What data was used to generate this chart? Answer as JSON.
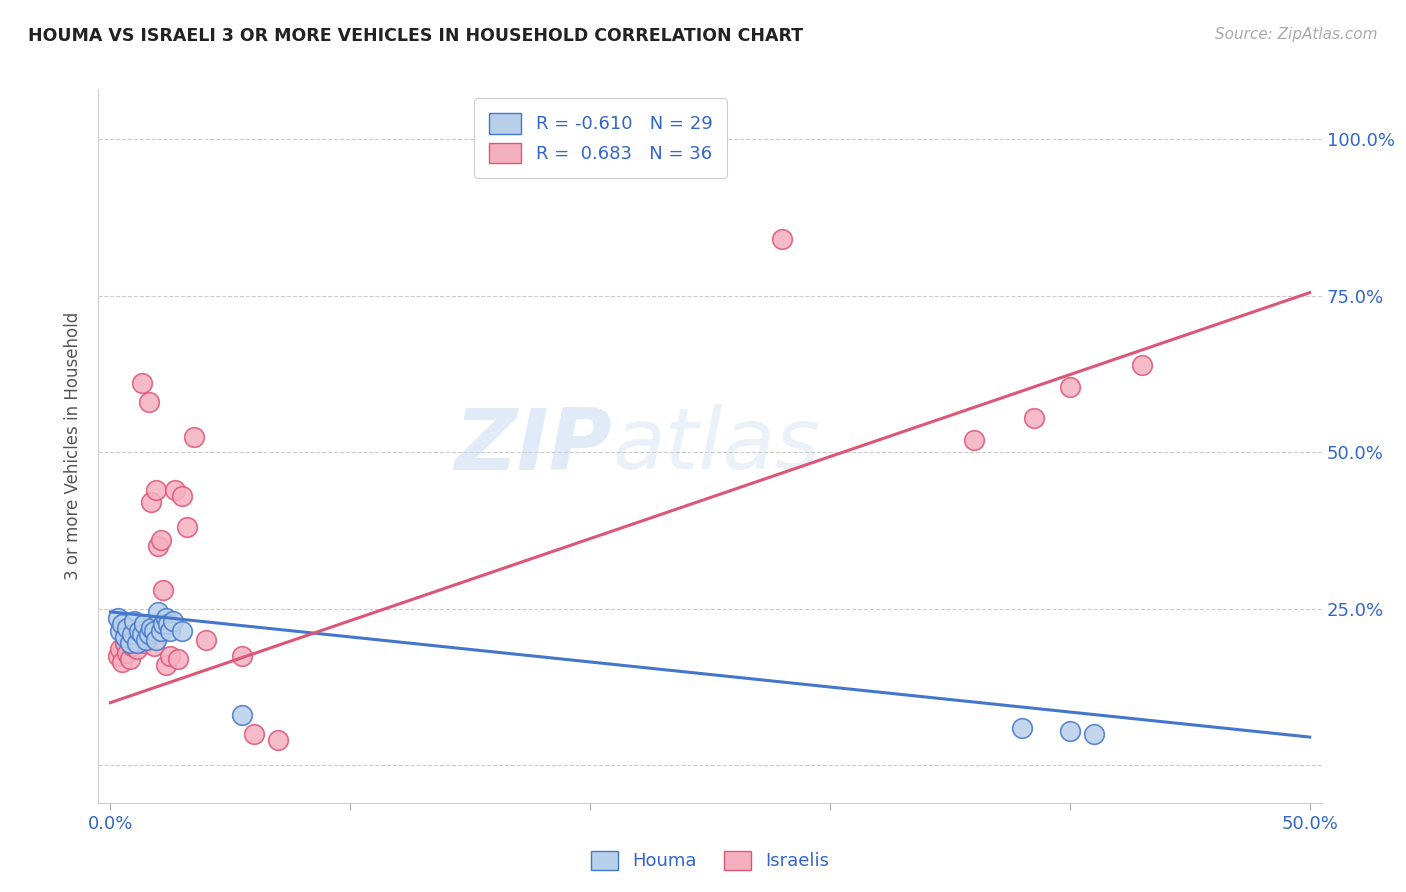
{
  "title": "HOUMA VS ISRAELI 3 OR MORE VEHICLES IN HOUSEHOLD CORRELATION CHART",
  "source": "Source: ZipAtlas.com",
  "ylabel": "3 or more Vehicles in Household",
  "xlabel_houma": "Houma",
  "xlabel_israeli": "Israelis",
  "watermark_zip": "ZIP",
  "watermark_atlas": "atlas",
  "xlim": [
    -0.005,
    0.505
  ],
  "ylim": [
    -0.06,
    1.08
  ],
  "houma_R": "-0.610",
  "houma_N": "29",
  "israeli_R": "0.683",
  "israeli_N": "36",
  "houma_color": "#b8d0ea",
  "israeli_color": "#f5b0c0",
  "houma_line_color": "#4477cc",
  "israeli_line_color": "#dd5577",
  "legend_text_color": "#3366cc",
  "axis_text_color": "#3366cc",
  "title_color": "#222222",
  "source_color": "#aaaaaa",
  "grid_color": "#cccccc",
  "background_color": "#ffffff",
  "houma_x": [
    0.003,
    0.004,
    0.005,
    0.006,
    0.007,
    0.008,
    0.009,
    0.01,
    0.011,
    0.012,
    0.013,
    0.014,
    0.015,
    0.016,
    0.017,
    0.018,
    0.019,
    0.02,
    0.021,
    0.022,
    0.023,
    0.024,
    0.025,
    0.026,
    0.03,
    0.055,
    0.38,
    0.4,
    0.41
  ],
  "houma_y": [
    0.235,
    0.215,
    0.225,
    0.205,
    0.22,
    0.195,
    0.21,
    0.23,
    0.195,
    0.215,
    0.21,
    0.225,
    0.2,
    0.21,
    0.22,
    0.215,
    0.2,
    0.245,
    0.215,
    0.225,
    0.235,
    0.225,
    0.215,
    0.23,
    0.215,
    0.08,
    0.06,
    0.055,
    0.05
  ],
  "israeli_x": [
    0.003,
    0.004,
    0.005,
    0.006,
    0.007,
    0.008,
    0.009,
    0.01,
    0.011,
    0.012,
    0.013,
    0.014,
    0.015,
    0.016,
    0.017,
    0.018,
    0.019,
    0.02,
    0.021,
    0.022,
    0.023,
    0.025,
    0.027,
    0.028,
    0.03,
    0.032,
    0.035,
    0.04,
    0.055,
    0.06,
    0.07,
    0.28,
    0.36,
    0.385,
    0.4,
    0.43
  ],
  "israeli_y": [
    0.175,
    0.185,
    0.165,
    0.195,
    0.18,
    0.17,
    0.19,
    0.2,
    0.185,
    0.2,
    0.61,
    0.195,
    0.205,
    0.58,
    0.42,
    0.19,
    0.44,
    0.35,
    0.36,
    0.28,
    0.16,
    0.175,
    0.44,
    0.17,
    0.43,
    0.38,
    0.525,
    0.2,
    0.175,
    0.05,
    0.04,
    0.84,
    0.52,
    0.555,
    0.605,
    0.64
  ],
  "houma_trendline_x": [
    0.0,
    0.5
  ],
  "houma_trendline_y": [
    0.245,
    0.045
  ],
  "israeli_trendline_x": [
    0.0,
    0.5
  ],
  "israeli_trendline_y": [
    0.1,
    0.755
  ]
}
